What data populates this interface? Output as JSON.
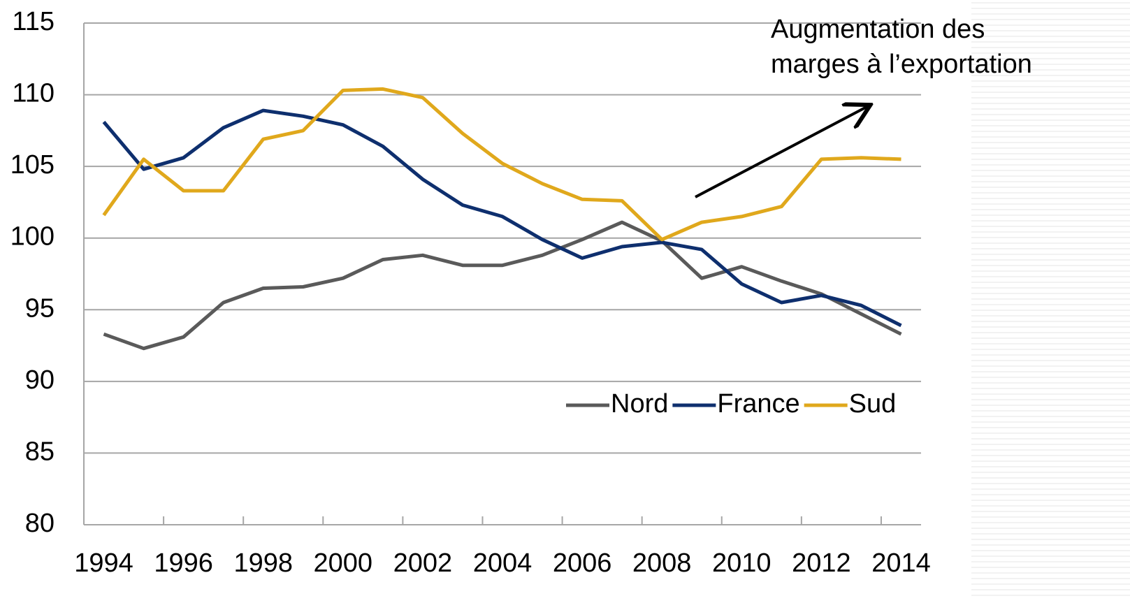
{
  "chart_data": {
    "type": "line",
    "categories": [
      "1994",
      null,
      "1996",
      null,
      "1998",
      null,
      "2000",
      null,
      "2002",
      null,
      "2004",
      null,
      "2006",
      null,
      "2008",
      null,
      "2010",
      null,
      "2012",
      null,
      "2014"
    ],
    "series": [
      {
        "name": "Nord",
        "color": "#5a5a5a",
        "values": [
          93.3,
          92.3,
          93.1,
          95.5,
          96.5,
          96.6,
          97.2,
          98.5,
          98.8,
          98.1,
          98.1,
          98.8,
          99.9,
          101.1,
          99.8,
          97.2,
          98.0,
          97.0,
          96.1,
          94.7,
          93.3
        ]
      },
      {
        "name": "France",
        "color": "#0e2f6e",
        "values": [
          108.1,
          104.8,
          105.6,
          107.7,
          108.9,
          108.5,
          107.9,
          106.4,
          104.1,
          102.3,
          101.5,
          99.9,
          98.6,
          99.4,
          99.7,
          99.2,
          96.8,
          95.5,
          96.0,
          95.3,
          93.9
        ]
      },
      {
        "name": "Sud",
        "color": "#e0a81c",
        "values": [
          101.6,
          105.5,
          103.3,
          103.3,
          106.9,
          107.5,
          110.3,
          110.4,
          109.8,
          107.3,
          105.2,
          103.8,
          102.7,
          102.6,
          99.9,
          101.1,
          101.5,
          102.2,
          105.5,
          105.6,
          105.5
        ]
      }
    ],
    "ylim": [
      80,
      115
    ],
    "yticks": [
      80,
      85,
      90,
      95,
      100,
      105,
      110,
      115
    ],
    "grid": true,
    "legend": "lower right",
    "annotation": "Augmentation des marges à l’exportation"
  }
}
